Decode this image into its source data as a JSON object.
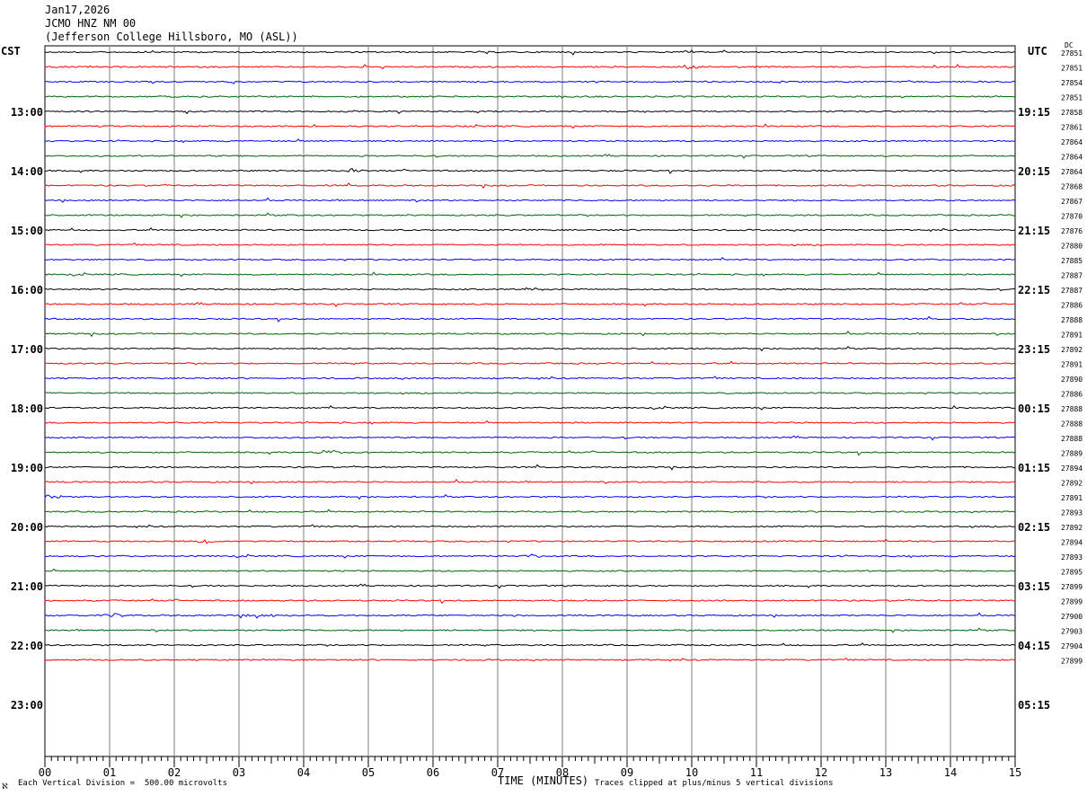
{
  "header": {
    "date": "Jan17,2026",
    "station": "JCMO HNZ NM 00",
    "location": "(Jefferson College Hillsboro, MO (ASL))"
  },
  "left_axis_label": "CST",
  "right_axis_label": "UTC",
  "dc_label": "DC",
  "footer": {
    "scale_note": "Each Vertical Division =  500.00 microvolts",
    "clip_note": "Traces clipped at plus/minus 5 vertical divisions",
    "corner_mark": "ℵ"
  },
  "colors": {
    "black": "#000000",
    "red": "#ff0000",
    "blue": "#0000ff",
    "green": "#006400",
    "grid": "#808080"
  },
  "chart_data": {
    "type": "line",
    "title": "",
    "xlabel": "TIME (MINUTES)",
    "x_ticks": [
      "00",
      "01",
      "02",
      "03",
      "04",
      "05",
      "06",
      "07",
      "08",
      "09",
      "10",
      "11",
      "12",
      "13",
      "14",
      "15"
    ],
    "xlim": [
      0,
      15
    ],
    "left_hour_labels": [
      "13:00",
      "14:00",
      "15:00",
      "16:00",
      "17:00",
      "18:00",
      "19:00",
      "20:00",
      "21:00",
      "22:00",
      "23:00"
    ],
    "right_hour_labels": [
      "19:15",
      "20:15",
      "21:15",
      "22:15",
      "23:15",
      "00:15",
      "01:15",
      "02:15",
      "03:15",
      "04:15",
      "05:15"
    ],
    "trace_colors": [
      "black",
      "red",
      "blue",
      "green"
    ],
    "dc_offsets": [
      27851,
      27851,
      27854,
      27851,
      27858,
      27861,
      27864,
      27864,
      27864,
      27868,
      27867,
      27870,
      27876,
      27880,
      27885,
      27887,
      27887,
      27886,
      27888,
      27891,
      27892,
      27891,
      27890,
      27886,
      27888,
      27888,
      27888,
      27889,
      27894,
      27892,
      27891,
      27893,
      27892,
      27894,
      27893,
      27895,
      27899,
      27899,
      27900,
      27903,
      27904,
      27899
    ],
    "events": [
      {
        "trace": 0,
        "minute": 9.9,
        "amp": 2.5
      },
      {
        "trace": 1,
        "minute": 9.95,
        "amp": 3
      },
      {
        "trace": 8,
        "minute": 4.8,
        "amp": 2
      },
      {
        "trace": 16,
        "minute": 7.5,
        "amp": 1.5
      },
      {
        "trace": 27,
        "minute": 4.4,
        "amp": 3
      },
      {
        "trace": 30,
        "minute": 0.1,
        "amp": 2.5
      },
      {
        "trace": 33,
        "minute": 2.5,
        "amp": 3
      },
      {
        "trace": 34,
        "minute": 7.6,
        "amp": 2
      },
      {
        "trace": 38,
        "minute": 1.1,
        "amp": 2
      },
      {
        "trace": 38,
        "minute": 3.3,
        "amp": 2.5
      }
    ]
  }
}
